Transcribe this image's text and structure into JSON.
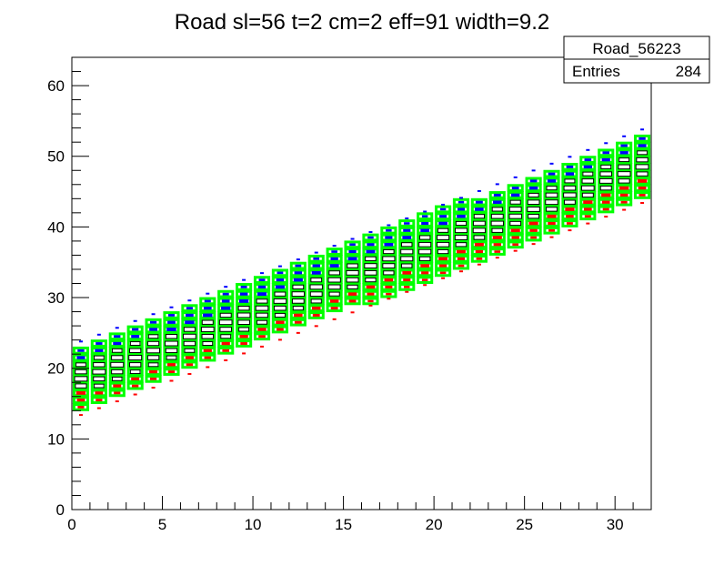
{
  "chart_data": {
    "type": "heatmap",
    "title": "Road sl=56 t=2 cm=2 eff=91 width=9.2",
    "xlabel": "",
    "ylabel": "",
    "xlim": [
      0,
      32
    ],
    "ylim": [
      0,
      64
    ],
    "x_ticks": [
      "0",
      "5",
      "10",
      "15",
      "20",
      "25",
      "30"
    ],
    "y_ticks": [
      "0",
      "10",
      "20",
      "30",
      "40",
      "50",
      "60"
    ],
    "stats_box": {
      "name": "Road_56223",
      "entries_label": "Entries",
      "entries_value": "284"
    },
    "road": {
      "description_values": {
        "center_intercept": 18.1,
        "slope": 0.968,
        "half_width": 4.6
      }
    },
    "colors": {
      "road_outline": "#00ff00",
      "upper_hits": "#0000ff",
      "lower_hits": "#ff0000",
      "center_hits": "#000000"
    },
    "grid": false,
    "legend": "top-right"
  }
}
